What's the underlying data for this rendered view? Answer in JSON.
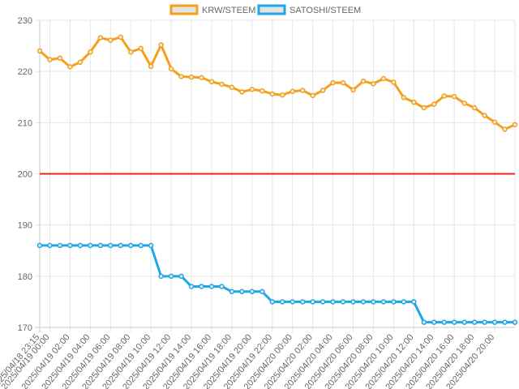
{
  "chart_data": {
    "type": "line",
    "title": "",
    "xlabel": "",
    "ylabel": "",
    "ylim": [
      170,
      230
    ],
    "yticks": [
      170,
      180,
      190,
      200,
      210,
      220,
      230
    ],
    "grid": true,
    "legend_position": "top",
    "reference_line": {
      "value": 200,
      "color": "#e8231a"
    },
    "x_tick_labels": [
      "2025/04/18 23:15",
      "2025/04/19 00:00",
      "2025/04/19 02:00",
      "2025/04/19 04:00",
      "2025/04/19 06:00",
      "2025/04/19 08:00",
      "2025/04/19 10:00",
      "2025/04/19 12:00",
      "2025/04/19 14:00",
      "2025/04/19 16:00",
      "2025/04/19 18:00",
      "2025/04/19 20:00",
      "2025/04/19 22:00",
      "2025/04/20 00:00",
      "2025/04/20 02:00",
      "2025/04/20 04:00",
      "2025/04/20 06:00",
      "2025/04/20 08:00",
      "2025/04/20 10:00",
      "2025/04/20 12:00",
      "2025/04/20 14:00",
      "2025/04/20 16:00",
      "2025/04/20 18:00",
      "2025/04/20 20:00"
    ],
    "series": [
      {
        "name": "KRW/STEEM",
        "color": "#f5a01a",
        "values": [
          224.0,
          222.3,
          222.6,
          220.9,
          221.8,
          223.8,
          226.6,
          226.1,
          226.7,
          223.8,
          224.5,
          221.0,
          225.2,
          220.5,
          219.0,
          218.9,
          218.8,
          218.0,
          217.5,
          216.9,
          216.0,
          216.5,
          216.2,
          215.6,
          215.4,
          216.1,
          216.3,
          215.3,
          216.3,
          217.8,
          217.8,
          216.4,
          218.1,
          217.6,
          218.6,
          217.9,
          214.9,
          214.0,
          212.9,
          213.6,
          215.2,
          215.1,
          213.8,
          212.9,
          211.4,
          210.1,
          208.7,
          209.6
        ]
      },
      {
        "name": "SATOSHI/STEEM",
        "color": "#1ea7e6",
        "values": [
          186,
          186,
          186,
          186,
          186,
          186,
          186,
          186,
          186,
          186,
          186,
          186,
          180,
          180,
          180,
          178,
          178,
          178,
          178,
          177,
          177,
          177,
          177,
          175,
          175,
          175,
          175,
          175,
          175,
          175,
          175,
          175,
          175,
          175,
          175,
          175,
          175,
          175,
          171,
          171,
          171,
          171,
          171,
          171,
          171,
          171,
          171,
          171
        ]
      }
    ]
  }
}
